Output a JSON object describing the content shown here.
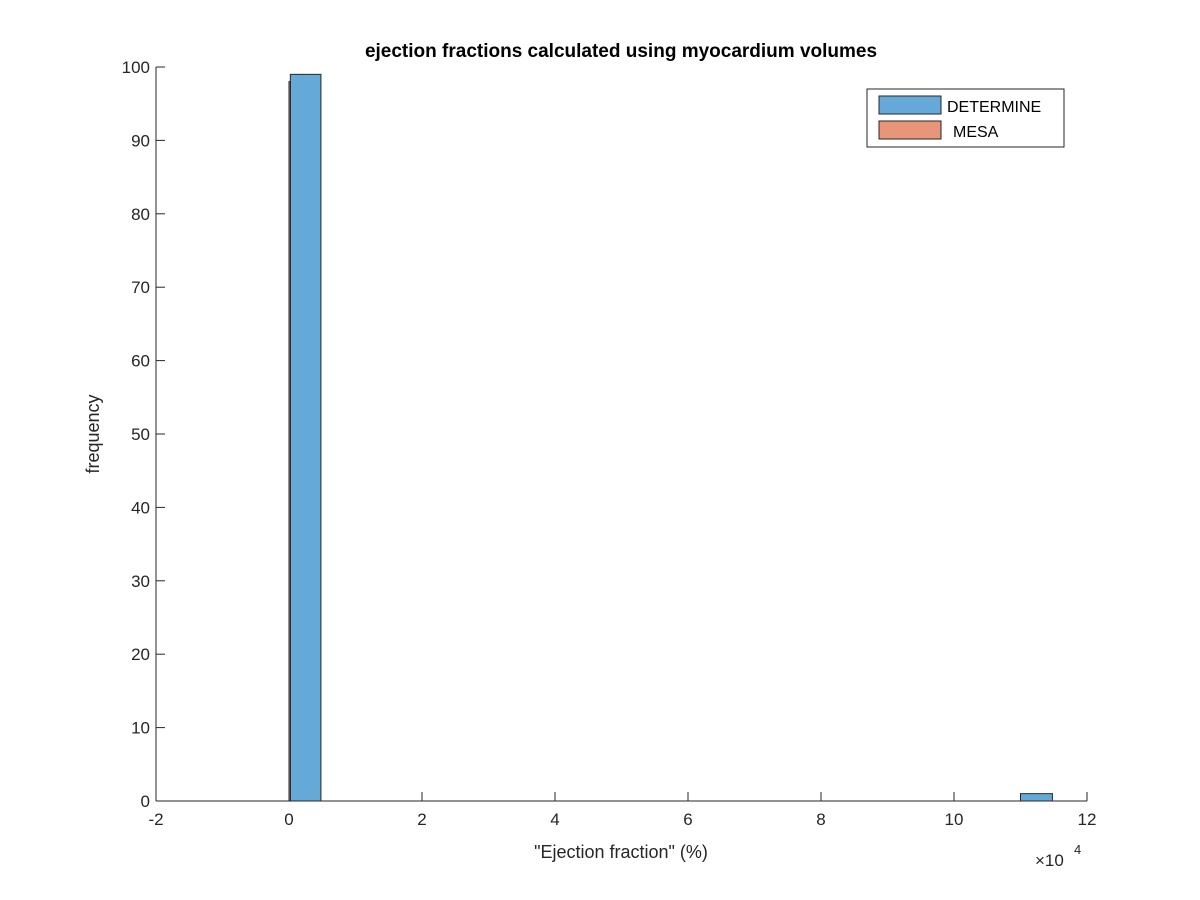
{
  "chart_data": {
    "type": "bar",
    "title": "ejection fractions calculated using myocardium volumes",
    "xlabel": "\"Ejection fraction\" (%)",
    "ylabel": "frequency",
    "x_exponent_label": "×10",
    "x_exponent_power": "4",
    "xlim": [
      -2,
      12
    ],
    "ylim": [
      0,
      100
    ],
    "xticks": [
      "-2",
      "0",
      "2",
      "4",
      "6",
      "8",
      "10",
      "12"
    ],
    "yticks": [
      "0",
      "10",
      "20",
      "30",
      "40",
      "50",
      "60",
      "70",
      "80",
      "90",
      "100"
    ],
    "legend_position": "top-right",
    "series": [
      {
        "name": "DETERMINE",
        "color": "#65a9d9",
        "bins": [
          {
            "x_start": 0.02,
            "x_end": 0.48,
            "count": 99
          },
          {
            "x_start": 11.0,
            "x_end": 11.48,
            "count": 1
          }
        ]
      },
      {
        "name": "MESA",
        "color": "#e8967a",
        "bins": [
          {
            "x_start": 0.0,
            "x_end": 0.02,
            "count": 98
          }
        ]
      }
    ]
  }
}
